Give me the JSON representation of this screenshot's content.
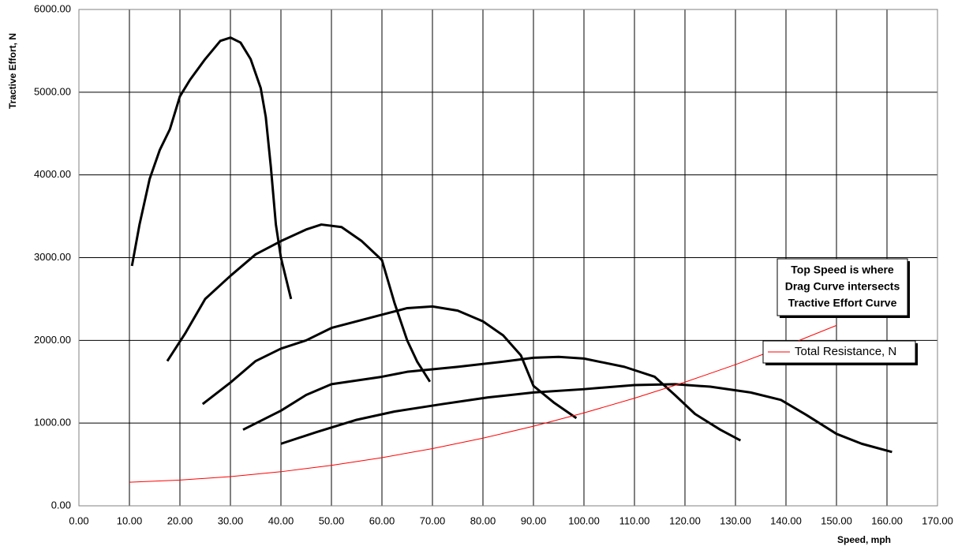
{
  "chart_data": {
    "type": "line",
    "xlabel": "Speed, mph",
    "ylabel": "Tractive Effort, N",
    "annotation": [
      "Top Speed is where",
      "Drag Curve intersects",
      "Tractive Effort Curve"
    ],
    "xlim": [
      0,
      170
    ],
    "ylim": [
      0,
      6000
    ],
    "xticks": [
      {
        "value": 0,
        "label": "0.00"
      },
      {
        "value": 10,
        "label": "10.00"
      },
      {
        "value": 20,
        "label": "20.00"
      },
      {
        "value": 30,
        "label": "30.00"
      },
      {
        "value": 40,
        "label": "40.00"
      },
      {
        "value": 50,
        "label": "50.00"
      },
      {
        "value": 60,
        "label": "60.00"
      },
      {
        "value": 70,
        "label": "70.00"
      },
      {
        "value": 80,
        "label": "80.00"
      },
      {
        "value": 90,
        "label": "90.00"
      },
      {
        "value": 100,
        "label": "100.00"
      },
      {
        "value": 110,
        "label": "110.00"
      },
      {
        "value": 120,
        "label": "120.00"
      },
      {
        "value": 130,
        "label": "130.00"
      },
      {
        "value": 140,
        "label": "140.00"
      },
      {
        "value": 150,
        "label": "150.00"
      },
      {
        "value": 160,
        "label": "160.00"
      },
      {
        "value": 170,
        "label": "170.00"
      }
    ],
    "yticks": [
      {
        "value": 0,
        "label": "0.00"
      },
      {
        "value": 1000,
        "label": "1000.00"
      },
      {
        "value": 2000,
        "label": "2000.00"
      },
      {
        "value": 3000,
        "label": "3000.00"
      },
      {
        "value": 4000,
        "label": "4000.00"
      },
      {
        "value": 5000,
        "label": "5000.00"
      },
      {
        "value": 6000,
        "label": "6000.00"
      }
    ],
    "grid": true,
    "legend": "right",
    "series": [
      {
        "color": "#000000",
        "x": [
          10.5,
          12,
          14,
          16,
          18,
          20,
          22,
          25,
          28,
          30,
          32,
          34,
          36,
          37,
          38,
          39,
          40,
          42
        ],
        "values": [
          2900,
          3400,
          3950,
          4300,
          4550,
          4950,
          5150,
          5400,
          5620,
          5660,
          5600,
          5400,
          5050,
          4700,
          4100,
          3400,
          3000,
          2500
        ]
      },
      {
        "color": "#000000",
        "x": [
          17.5,
          21,
          25,
          30,
          35,
          40,
          45,
          48,
          52,
          56,
          60,
          62.5,
          65,
          67,
          69.5
        ],
        "values": [
          1750,
          2080,
          2500,
          2780,
          3040,
          3200,
          3340,
          3400,
          3370,
          3200,
          2970,
          2450,
          2000,
          1740,
          1500
        ]
      },
      {
        "color": "#000000",
        "x": [
          24.5,
          30,
          35,
          40,
          45,
          50,
          55,
          60,
          65,
          70,
          75,
          80,
          84,
          87.5,
          90,
          94,
          98.5
        ],
        "values": [
          1230,
          1490,
          1750,
          1900,
          2000,
          2150,
          2230,
          2310,
          2390,
          2410,
          2360,
          2230,
          2060,
          1820,
          1450,
          1250,
          1060
        ]
      },
      {
        "color": "#000000",
        "x": [
          32.5,
          40,
          45,
          50,
          60,
          65,
          75,
          85,
          90,
          95,
          100,
          108,
          114,
          118,
          122,
          127,
          131
        ],
        "values": [
          920,
          1150,
          1340,
          1470,
          1560,
          1620,
          1680,
          1750,
          1790,
          1800,
          1780,
          1680,
          1560,
          1340,
          1110,
          920,
          790
        ]
      },
      {
        "color": "#000000",
        "x": [
          40,
          47,
          55,
          62.5,
          72,
          81,
          90,
          100,
          110,
          118,
          125,
          133,
          139,
          144,
          150,
          155,
          161
        ],
        "values": [
          750,
          890,
          1040,
          1140,
          1230,
          1310,
          1370,
          1410,
          1460,
          1470,
          1440,
          1370,
          1280,
          1100,
          870,
          750,
          650
        ]
      },
      {
        "name": "Total Resistance, N",
        "color": "#ff0000",
        "x": [
          10,
          20,
          30,
          40,
          50,
          60,
          70,
          80,
          90,
          100,
          110,
          120,
          130,
          140,
          150
        ],
        "values": [
          285,
          311,
          353,
          412,
          489,
          582,
          692,
          818,
          962,
          1123,
          1301,
          1495,
          1707,
          1935,
          2181
        ]
      }
    ]
  }
}
